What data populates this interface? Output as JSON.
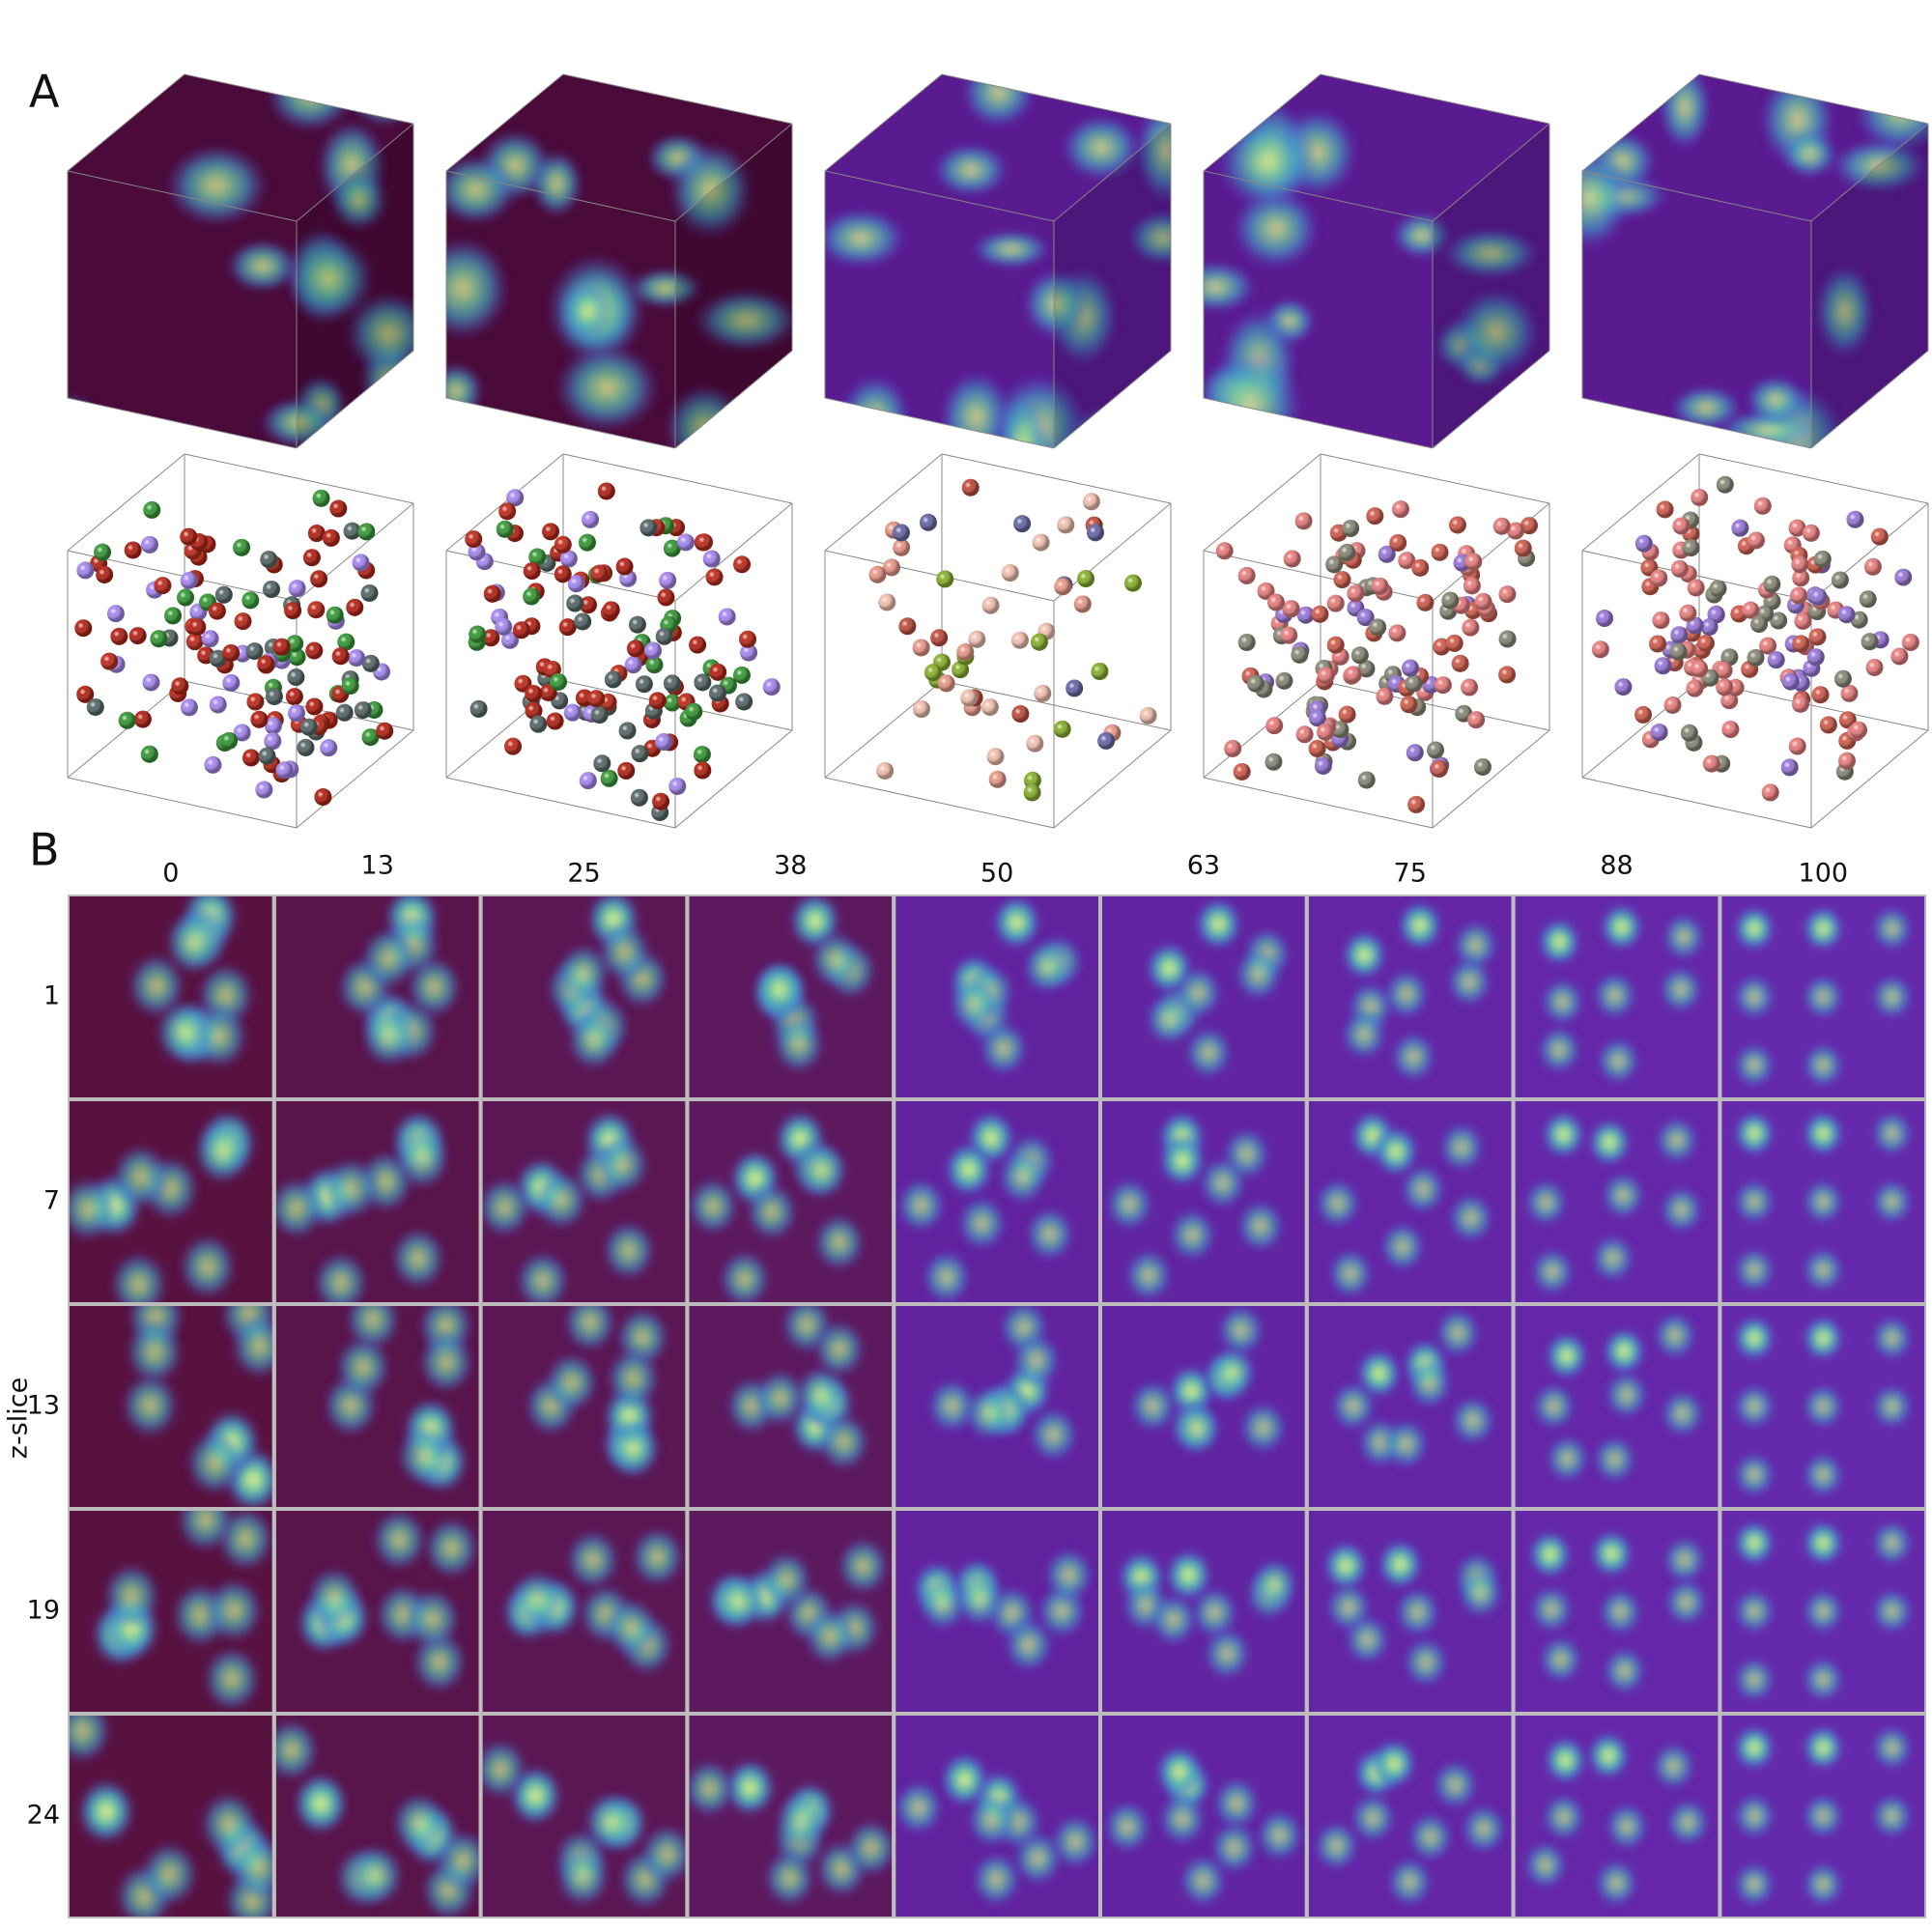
{
  "panel_a": {
    "label": "A"
  },
  "panel_b": {
    "label": "B",
    "y_axis_label": "z-slice",
    "columns": [
      "0",
      "13",
      "25",
      "38",
      "50",
      "63",
      "75",
      "88",
      "100"
    ],
    "rows": [
      "1",
      "7",
      "13",
      "19",
      "24"
    ]
  }
}
